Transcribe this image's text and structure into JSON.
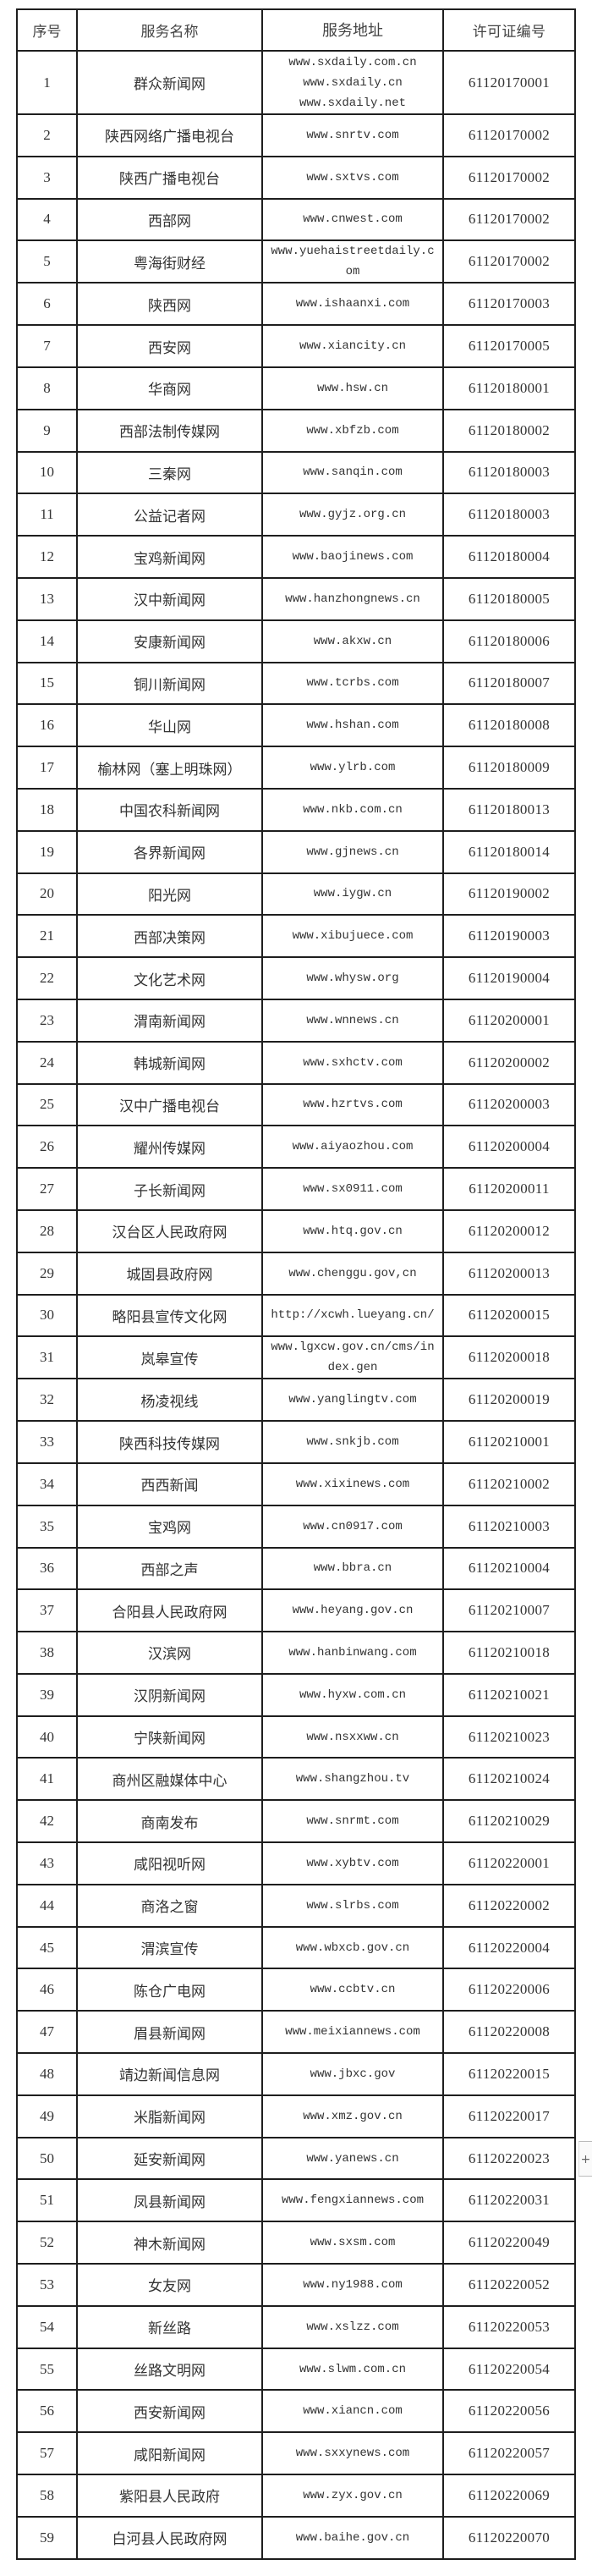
{
  "table": {
    "headers": [
      "序号",
      "服务名称",
      "服务地址",
      "许可证编号"
    ],
    "rows": [
      [
        "1",
        "群众新闻网",
        "www.sxdaily.com.cn\nwww.sxdaily.cn\nwww.sxdaily.net",
        "61120170001"
      ],
      [
        "2",
        "陕西网络广播电视台",
        "www.snrtv.com",
        "61120170002"
      ],
      [
        "3",
        "陕西广播电视台",
        "www.sxtvs.com",
        "61120170002"
      ],
      [
        "4",
        "西部网",
        "www.cnwest.com",
        "61120170002"
      ],
      [
        "5",
        "粤海街财经",
        "www.yuehaistreetdaily.c\nom",
        "61120170002"
      ],
      [
        "6",
        "陕西网",
        "www.ishaanxi.com",
        "61120170003"
      ],
      [
        "7",
        "西安网",
        "www.xiancity.cn",
        "61120170005"
      ],
      [
        "8",
        "华商网",
        "www.hsw.cn",
        "61120180001"
      ],
      [
        "9",
        "西部法制传媒网",
        "www.xbfzb.com",
        "61120180002"
      ],
      [
        "10",
        "三秦网",
        "www.sanqin.com",
        "61120180003"
      ],
      [
        "11",
        "公益记者网",
        "www.gyjz.org.cn",
        "61120180003"
      ],
      [
        "12",
        "宝鸡新闻网",
        "www.baojinews.com",
        "61120180004"
      ],
      [
        "13",
        "汉中新闻网",
        "www.hanzhongnews.cn",
        "61120180005"
      ],
      [
        "14",
        "安康新闻网",
        "www.akxw.cn",
        "61120180006"
      ],
      [
        "15",
        "铜川新闻网",
        "www.tcrbs.com",
        "61120180007"
      ],
      [
        "16",
        "华山网",
        "www.hshan.com",
        "61120180008"
      ],
      [
        "17",
        "榆林网（塞上明珠网）",
        "www.ylrb.com",
        "61120180009"
      ],
      [
        "18",
        "中国农科新闻网",
        "www.nkb.com.cn",
        "61120180013"
      ],
      [
        "19",
        "各界新闻网",
        "www.gjnews.cn",
        "61120180014"
      ],
      [
        "20",
        "阳光网",
        "www.iygw.cn",
        "61120190002"
      ],
      [
        "21",
        "西部决策网",
        "www.xibujuece.com",
        "61120190003"
      ],
      [
        "22",
        "文化艺术网",
        "www.whysw.org",
        "61120190004"
      ],
      [
        "23",
        "渭南新闻网",
        "www.wnnews.cn",
        "61120200001"
      ],
      [
        "24",
        "韩城新闻网",
        "www.sxhctv.com",
        "61120200002"
      ],
      [
        "25",
        "汉中广播电视台",
        "www.hzrtvs.com",
        "61120200003"
      ],
      [
        "26",
        "耀州传媒网",
        "www.aiyaozhou.com",
        "61120200004"
      ],
      [
        "27",
        "子长新闻网",
        "www.sx0911.com",
        "61120200011"
      ],
      [
        "28",
        "汉台区人民政府网",
        "www.htq.gov.cn",
        "61120200012"
      ],
      [
        "29",
        "城固县政府网",
        "www.chenggu.gov,cn",
        "61120200013"
      ],
      [
        "30",
        "略阳县宣传文化网",
        "http://xcwh.lueyang.cn/",
        "61120200015"
      ],
      [
        "31",
        "岚皋宣传",
        "www.lgxcw.gov.cn/cms/in\ndex.gen",
        "61120200018"
      ],
      [
        "32",
        "杨凌视线",
        "www.yanglingtv.com",
        "61120200019"
      ],
      [
        "33",
        "陕西科技传媒网",
        "www.snkjb.com",
        "61120210001"
      ],
      [
        "34",
        "西西新闻",
        "www.xixinews.com",
        "61120210002"
      ],
      [
        "35",
        "宝鸡网",
        "www.cn0917.com",
        "61120210003"
      ],
      [
        "36",
        "西部之声",
        "www.bbra.cn",
        "61120210004"
      ],
      [
        "37",
        "合阳县人民政府网",
        "www.heyang.gov.cn",
        "61120210007"
      ],
      [
        "38",
        "汉滨网",
        "www.hanbinwang.com",
        "61120210018"
      ],
      [
        "39",
        "汉阴新闻网",
        "www.hyxw.com.cn",
        "61120210021"
      ],
      [
        "40",
        "宁陕新闻网",
        "www.nsxxww.cn",
        "61120210023"
      ],
      [
        "41",
        "商州区融媒体中心",
        "www.shangzhou.tv",
        "61120210024"
      ],
      [
        "42",
        "商南发布",
        "www.snrmt.com",
        "61120210029"
      ],
      [
        "43",
        "咸阳视听网",
        "www.xybtv.com",
        "61120220001"
      ],
      [
        "44",
        "商洛之窗",
        "www.slrbs.com",
        "61120220002"
      ],
      [
        "45",
        "渭滨宣传",
        "www.wbxcb.gov.cn",
        "61120220004"
      ],
      [
        "46",
        "陈仓广电网",
        "www.ccbtv.cn",
        "61120220006"
      ],
      [
        "47",
        "眉县新闻网",
        "www.meixiannews.com",
        "61120220008"
      ],
      [
        "48",
        "靖边新闻信息网",
        "www.jbxc.gov",
        "61120220015"
      ],
      [
        "49",
        "米脂新闻网",
        "www.xmz.gov.cn",
        "61120220017"
      ],
      [
        "50",
        "延安新闻网",
        "www.yanews.cn",
        "61120220023"
      ],
      [
        "51",
        "凤县新闻网",
        "www.fengxiannews.com",
        "61120220031"
      ],
      [
        "52",
        "神木新闻网",
        "www.sxsm.com",
        "61120220049"
      ],
      [
        "53",
        "女友网",
        "www.ny1988.com",
        "61120220052"
      ],
      [
        "54",
        "新丝路",
        "www.xslzz.com",
        "61120220053"
      ],
      [
        "55",
        "丝路文明网",
        "www.slwm.com.cn",
        "61120220054"
      ],
      [
        "56",
        "西安新闻网",
        "www.xiancn.com",
        "61120220056"
      ],
      [
        "57",
        "咸阳新闻网",
        "www.sxxynews.com",
        "61120220057"
      ],
      [
        "58",
        "紫阳县人民政府",
        "www.zyx.gov.cn",
        "61120220069"
      ],
      [
        "59",
        "白河县人民政府网",
        "www.baihe.gov.cn",
        "61120220070"
      ]
    ]
  },
  "side_button": {
    "label": "+",
    "icon": "plus-icon"
  }
}
